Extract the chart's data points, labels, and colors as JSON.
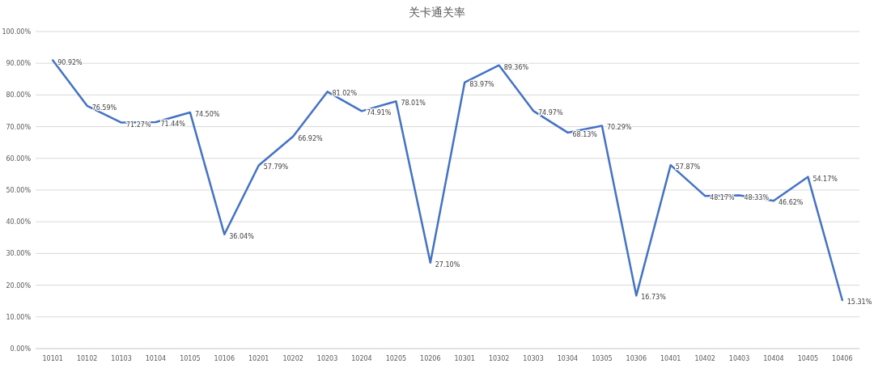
{
  "chart_data": {
    "type": "line",
    "title": "关卡通关率",
    "categories": [
      "10101",
      "10102",
      "10103",
      "10104",
      "10105",
      "10106",
      "10201",
      "10202",
      "10203",
      "10204",
      "10205",
      "10206",
      "10301",
      "10302",
      "10303",
      "10304",
      "10305",
      "10306",
      "10401",
      "10402",
      "10403",
      "10404",
      "10405",
      "10406"
    ],
    "series": [
      {
        "color": "#4472c4",
        "values": [
          90.92,
          76.59,
          71.27,
          71.44,
          74.5,
          36.04,
          57.79,
          66.92,
          81.02,
          74.91,
          78.01,
          27.1,
          83.97,
          89.36,
          74.97,
          68.13,
          70.29,
          16.73,
          57.87,
          48.17,
          48.33,
          46.62,
          54.17,
          15.31
        ],
        "value_labels": [
          "90.92%",
          "76.59%",
          "71.27%",
          "71.44%",
          "74.50%",
          "36.04%",
          "57.79%",
          "66.92%",
          "81.02%",
          "74.91%",
          "78.01%",
          "27.10%",
          "83.97%",
          "89.36%",
          "74.97%",
          "68.13%",
          "70.29%",
          "16.73%",
          "57.87%",
          "48.17%",
          "48.33%",
          "46.62%",
          "54.17%",
          "15.31%"
        ]
      }
    ],
    "ylim": [
      0,
      100
    ],
    "yticks": [
      {
        "value": 0,
        "label": "0.00%"
      },
      {
        "value": 10,
        "label": "10.00%"
      },
      {
        "value": 20,
        "label": "20.00%"
      },
      {
        "value": 30,
        "label": "30.00%"
      },
      {
        "value": 40,
        "label": "40.00%"
      },
      {
        "value": 50,
        "label": "50.00%"
      },
      {
        "value": 60,
        "label": "60.00%"
      },
      {
        "value": 70,
        "label": "70.00%"
      },
      {
        "value": 80,
        "label": "80.00%"
      },
      {
        "value": 90,
        "label": "90.00%"
      },
      {
        "value": 100,
        "label": "100.00%"
      }
    ],
    "grid": "y"
  }
}
